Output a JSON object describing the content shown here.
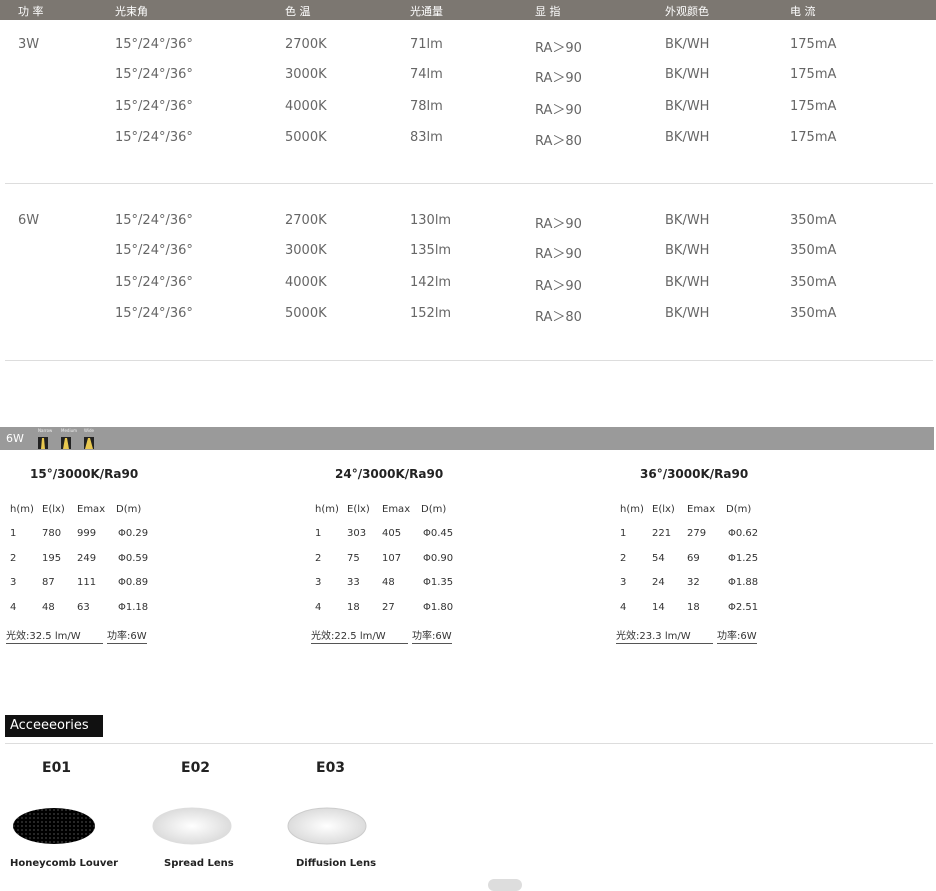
{
  "spec_table": {
    "headers": [
      "功 率",
      "光束角",
      "色 温",
      "光通量",
      "显 指",
      "外观颜色",
      "电 流"
    ],
    "groups": [
      {
        "power": "3W",
        "rows": [
          [
            "15°/24°/36°",
            "2700K",
            "71lm",
            "RA＞90",
            "BK/WH",
            "175mA"
          ],
          [
            "15°/24°/36°",
            "3000K",
            "74lm",
            "RA＞90",
            "BK/WH",
            "175mA"
          ],
          [
            "15°/24°/36°",
            "4000K",
            "78lm",
            "RA＞90",
            "BK/WH",
            "175mA"
          ],
          [
            "15°/24°/36°",
            "5000K",
            "83lm",
            "RA＞80",
            "BK/WH",
            "175mA"
          ]
        ]
      },
      {
        "power": "6W",
        "rows": [
          [
            "15°/24°/36°",
            "2700K",
            "130lm",
            "RA＞90",
            "BK/WH",
            "350mA"
          ],
          [
            "15°/24°/36°",
            "3000K",
            "135lm",
            "RA＞90",
            "BK/WH",
            "350mA"
          ],
          [
            "15°/24°/36°",
            "4000K",
            "142lm",
            "RA＞90",
            "BK/WH",
            "350mA"
          ],
          [
            "15°/24°/36°",
            "5000K",
            "152lm",
            "RA＞80",
            "BK/WH",
            "350mA"
          ]
        ]
      }
    ]
  },
  "photometric": {
    "power": "6W",
    "beam_icons": [
      "Narrow",
      "Medium",
      "Wide"
    ],
    "panels": [
      {
        "title": "15°/3000K/Ra90",
        "columns": [
          "h(m)",
          "E(lx)",
          "Emax",
          "D(m)"
        ],
        "rows": [
          [
            "1",
            "780",
            "999",
            "Φ0.29"
          ],
          [
            "2",
            "195",
            "249",
            "Φ0.59"
          ],
          [
            "3",
            "87",
            "111",
            "Φ0.89"
          ],
          [
            "4",
            "48",
            "63",
            "Φ1.18"
          ]
        ],
        "efficacy": "光效:32.5 lm/W",
        "power": "功率:6W"
      },
      {
        "title": "24°/3000K/Ra90",
        "columns": [
          "h(m)",
          "E(lx)",
          "Emax",
          "D(m)"
        ],
        "rows": [
          [
            "1",
            "303",
            "405",
            "Φ0.45"
          ],
          [
            "2",
            "75",
            "107",
            "Φ0.90"
          ],
          [
            "3",
            "33",
            "48",
            "Φ1.35"
          ],
          [
            "4",
            "18",
            "27",
            "Φ1.80"
          ]
        ],
        "efficacy": "光效:22.5 lm/W",
        "power": "功率:6W"
      },
      {
        "title": "36°/3000K/Ra90",
        "columns": [
          "h(m)",
          "E(lx)",
          "Emax",
          "D(m)"
        ],
        "rows": [
          [
            "1",
            "221",
            "279",
            "Φ0.62"
          ],
          [
            "2",
            "54",
            "69",
            "Φ1.25"
          ],
          [
            "3",
            "24",
            "32",
            "Φ1.88"
          ],
          [
            "4",
            "14",
            "18",
            "Φ2.51"
          ]
        ],
        "efficacy": "光效:23.3 lm/W",
        "power": "功率:6W"
      }
    ]
  },
  "accessories": {
    "title": "Acceeeories",
    "items": [
      {
        "code": "E01",
        "name": "Honeycomb Louver"
      },
      {
        "code": "E02",
        "name": "Spread Lens"
      },
      {
        "code": "E03",
        "name": "Diffusion Lens"
      }
    ]
  }
}
